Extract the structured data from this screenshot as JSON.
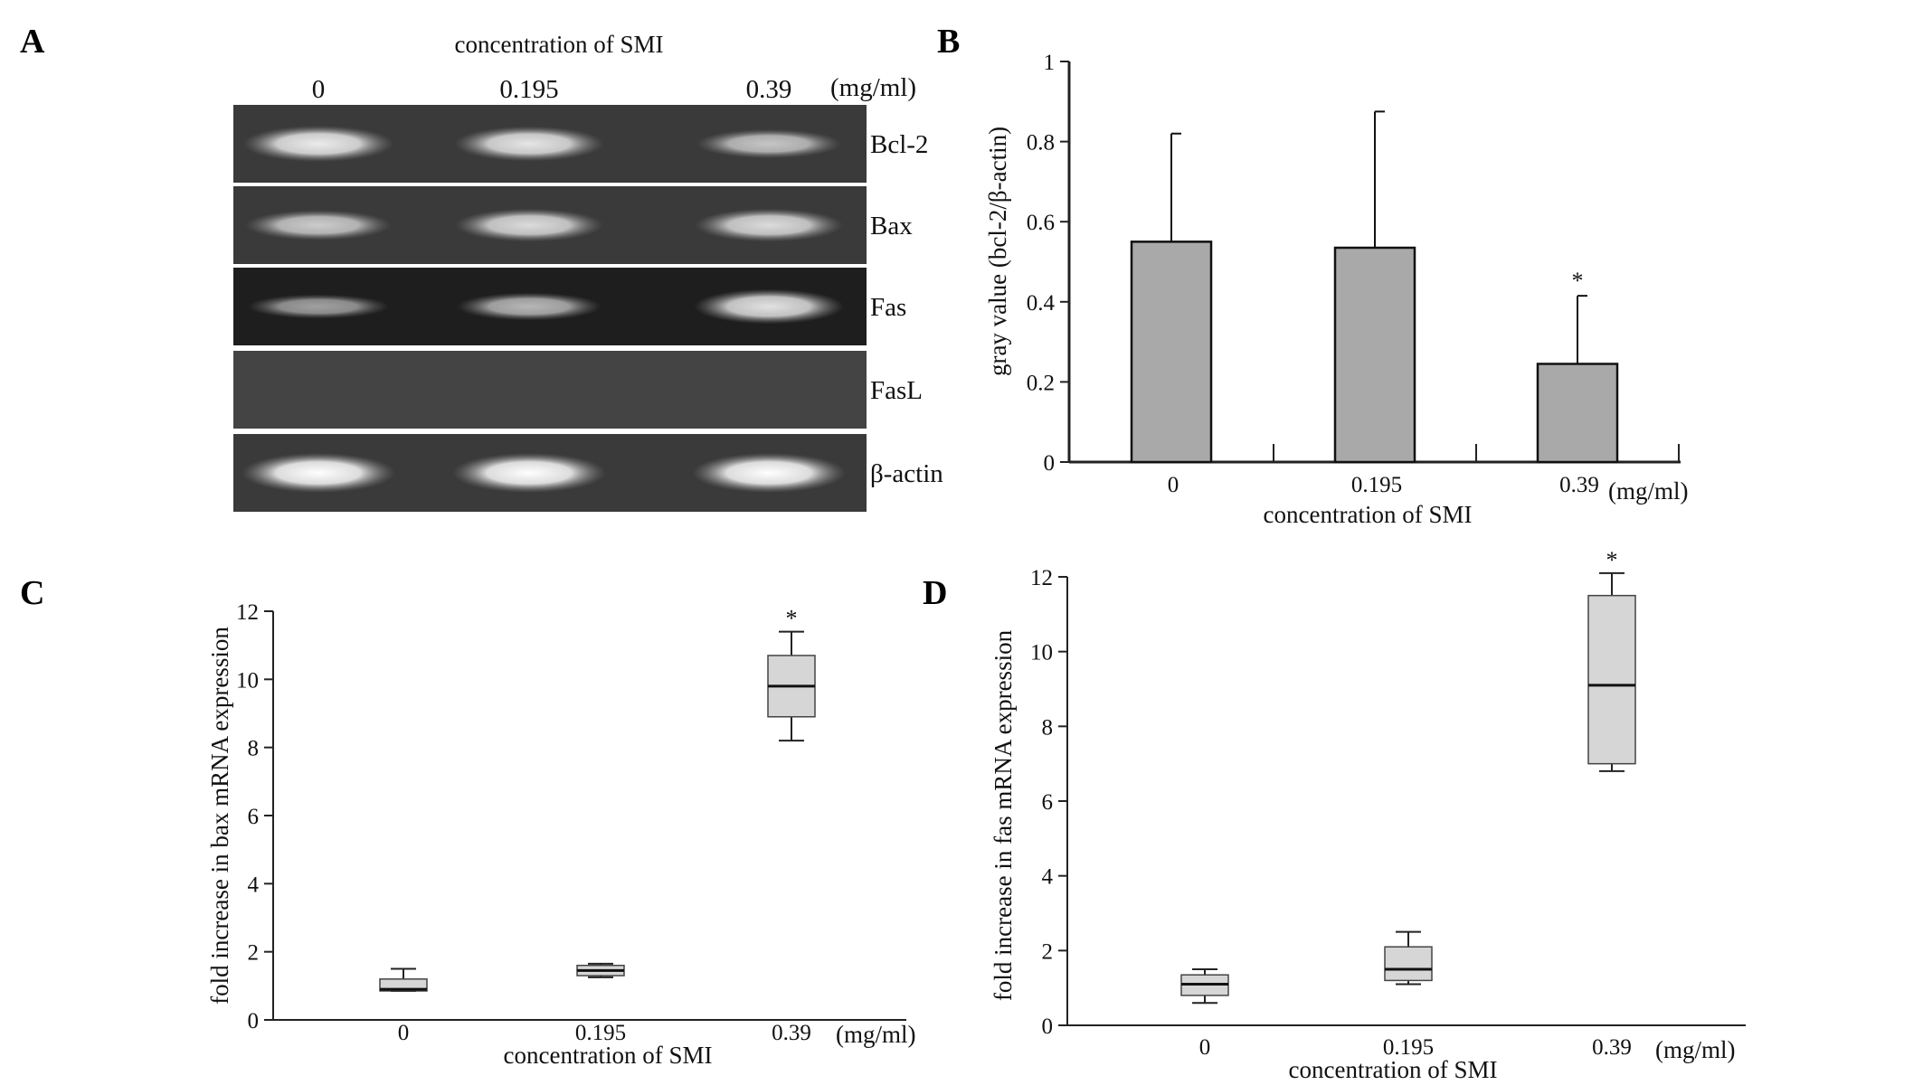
{
  "figure": {
    "panel_labels": [
      "A",
      "B",
      "C",
      "D"
    ]
  },
  "chart_data": [
    {
      "panel": "A",
      "type": "table",
      "title": "concentration of SMI",
      "unit": "(mg/ml)",
      "lanes": [
        "0",
        "0.195",
        "0.39"
      ],
      "rows": [
        "Bcl-2",
        "Bax",
        "Fas",
        "FasL",
        "β-actin"
      ],
      "band_intensity": [
        [
          0.85,
          0.8,
          0.55
        ],
        [
          0.6,
          0.72,
          0.72
        ],
        [
          0.35,
          0.5,
          0.8
        ],
        [
          0.0,
          0.0,
          0.0
        ],
        [
          1.0,
          1.0,
          1.0
        ]
      ]
    },
    {
      "panel": "B",
      "type": "bar",
      "categories": [
        "0",
        "0.195",
        "0.39"
      ],
      "values": [
        0.55,
        0.535,
        0.245
      ],
      "errors": [
        0.27,
        0.34,
        0.17
      ],
      "significance": [
        "",
        "",
        "*"
      ],
      "ylabel": "gray value  (bcl-2/β-actin)",
      "xlabel": "concentration of SMI",
      "unit": "(mg/ml)",
      "ylim": [
        0,
        1
      ],
      "yticks": [
        "0",
        "0.2",
        "0.4",
        "0.6",
        "0.8",
        "1"
      ],
      "bar_color": "#a9a9a9"
    },
    {
      "panel": "C",
      "type": "box",
      "categories": [
        "0",
        "0.195",
        "0.39"
      ],
      "boxes": [
        {
          "min": 0.85,
          "q1": 0.85,
          "median": 0.9,
          "q3": 1.2,
          "max": 1.5
        },
        {
          "min": 1.25,
          "q1": 1.3,
          "median": 1.45,
          "q3": 1.6,
          "max": 1.65
        },
        {
          "min": 8.2,
          "q1": 8.9,
          "median": 9.8,
          "q3": 10.7,
          "max": 11.4
        }
      ],
      "significance": [
        "",
        "",
        "*"
      ],
      "ylabel": "fold increase in bax mRNA expression",
      "xlabel": "concentration of SMI",
      "unit": "(mg/ml)",
      "ylim": [
        0,
        12
      ],
      "yticks": [
        "0",
        "2",
        "4",
        "6",
        "8",
        "10",
        "12"
      ],
      "box_color": "#d6d6d6"
    },
    {
      "panel": "D",
      "type": "box",
      "categories": [
        "0",
        "0.195",
        "0.39"
      ],
      "boxes": [
        {
          "min": 0.6,
          "q1": 0.8,
          "median": 1.1,
          "q3": 1.35,
          "max": 1.5
        },
        {
          "min": 1.1,
          "q1": 1.2,
          "median": 1.5,
          "q3": 2.1,
          "max": 2.5
        },
        {
          "min": 6.8,
          "q1": 7.0,
          "median": 9.1,
          "q3": 11.5,
          "max": 12.1
        }
      ],
      "significance": [
        "",
        "",
        "*"
      ],
      "ylabel": "fold increase in fas mRNA expression",
      "xlabel": "concentration of SMI",
      "unit": "(mg/ml)",
      "ylim": [
        0,
        12
      ],
      "yticks": [
        "0",
        "2",
        "4",
        "6",
        "8",
        "10",
        "12"
      ],
      "box_color": "#d6d6d6"
    }
  ]
}
